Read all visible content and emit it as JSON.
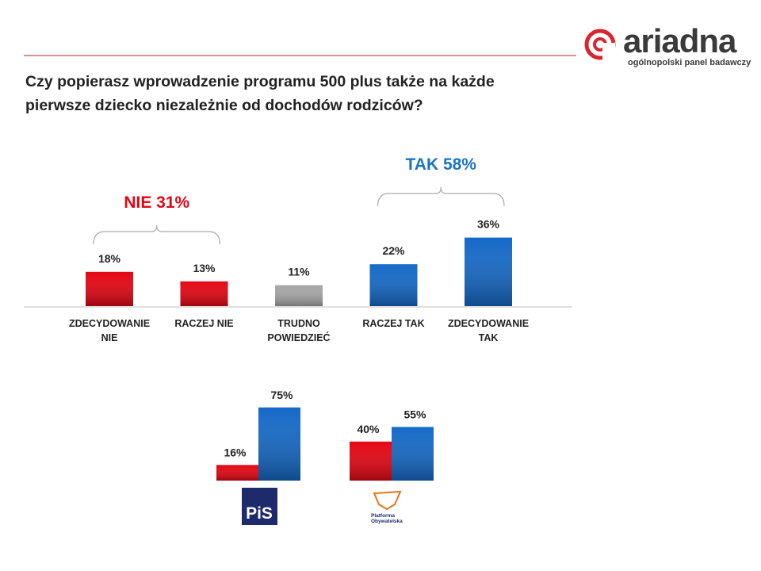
{
  "header": {
    "brand": "ariadna",
    "tagline": "ogólnopolski panel badawczy"
  },
  "chart_data": [
    {
      "type": "bar",
      "title": "Czy popierasz wprowadzenie programu 500 plus także na każde pierwsze dziecko niezależnie od dochodów rodziców?",
      "categories": [
        "ZDECYDOWANIE NIE",
        "RACZEJ NIE",
        "TRUDNO POWIEDZIEĆ",
        "RACZEJ TAK",
        "ZDECYDOWANIE TAK"
      ],
      "values": [
        18,
        13,
        11,
        22,
        36
      ],
      "value_labels": [
        "18%",
        "13%",
        "11%",
        "22%",
        "36%"
      ],
      "colors": [
        "#e30613",
        "#e30613",
        "#a6a6a6",
        "#1569c7",
        "#1569c7"
      ],
      "annotations": [
        {
          "text": "NIE 31%",
          "color": "#e30613"
        },
        {
          "text": "TAK 58%",
          "color": "#1a73c4"
        }
      ]
    },
    {
      "type": "grouped-bar",
      "categories": [
        "PiS",
        "Platforma Obywatelska"
      ],
      "series": [
        {
          "color": "#e30613",
          "values": [
            16,
            40
          ],
          "value_labels": [
            "16%",
            "40%"
          ]
        },
        {
          "color": "#1569c7",
          "values": [
            75,
            55
          ],
          "value_labels": [
            "75%",
            "55%"
          ]
        }
      ]
    }
  ]
}
